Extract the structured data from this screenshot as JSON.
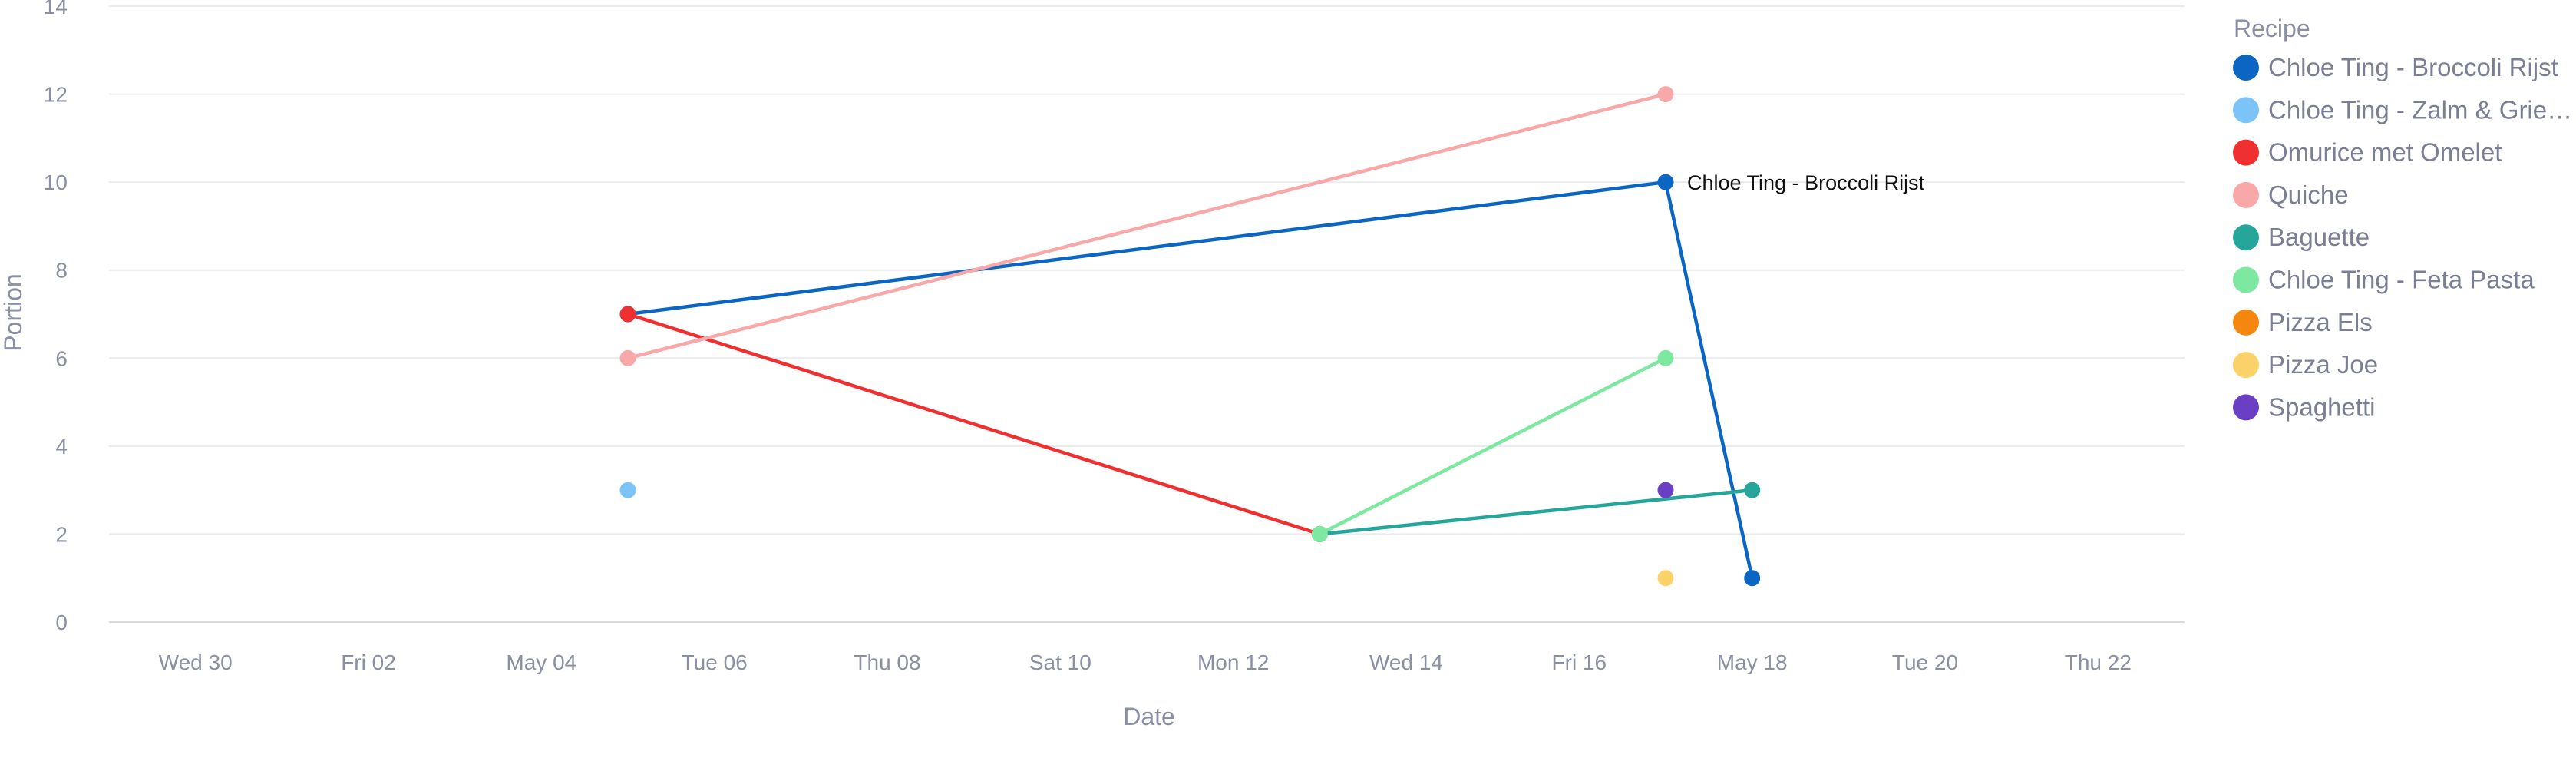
{
  "chart_data": {
    "type": "line",
    "xlabel": "Date",
    "ylabel": "Portion",
    "ylim": [
      0,
      14
    ],
    "yticks": [
      0,
      2,
      4,
      6,
      8,
      10,
      12,
      14
    ],
    "xlim": [
      "2025-04-29",
      "2025-05-23"
    ],
    "xticks": [
      {
        "date": "2025-04-30",
        "label": "Wed 30"
      },
      {
        "date": "2025-05-02",
        "label": "Fri 02"
      },
      {
        "date": "2025-05-04",
        "label": "May 04"
      },
      {
        "date": "2025-05-06",
        "label": "Tue 06"
      },
      {
        "date": "2025-05-08",
        "label": "Thu 08"
      },
      {
        "date": "2025-05-10",
        "label": "Sat 10"
      },
      {
        "date": "2025-05-12",
        "label": "Mon 12"
      },
      {
        "date": "2025-05-14",
        "label": "Wed 14"
      },
      {
        "date": "2025-05-16",
        "label": "Fri 16"
      },
      {
        "date": "2025-05-18",
        "label": "May 18"
      },
      {
        "date": "2025-05-20",
        "label": "Tue 20"
      },
      {
        "date": "2025-05-22",
        "label": "Thu 22"
      }
    ],
    "grid": true,
    "legend": {
      "title": "Recipe",
      "placement": "right"
    },
    "annotations": [
      {
        "text": "Chloe Ting - Broccoli Rijst",
        "x": "2025-05-17",
        "y": 10
      }
    ],
    "series": [
      {
        "name": "Chloe Ting - Broccoli Rijst",
        "legend_label": "Chloe Ting - Broccoli Rijst",
        "color": "#0a66c2",
        "points": [
          {
            "x": "2025-05-05",
            "y": 7
          },
          {
            "x": "2025-05-17",
            "y": 10
          },
          {
            "x": "2025-05-18",
            "y": 1
          }
        ]
      },
      {
        "name": "Chloe Ting - Zalm & Griesmeel",
        "legend_label": "Chloe Ting - Zalm & Grie…",
        "color": "#7cc4f8",
        "points": [
          {
            "x": "2025-05-05",
            "y": 3
          }
        ]
      },
      {
        "name": "Omurice met Omelet",
        "legend_label": "Omurice met Omelet",
        "color": "#f03030",
        "points": [
          {
            "x": "2025-05-05",
            "y": 7
          },
          {
            "x": "2025-05-13",
            "y": 2
          }
        ]
      },
      {
        "name": "Quiche",
        "legend_label": "Quiche",
        "color": "#f8a8a8",
        "points": [
          {
            "x": "2025-05-05",
            "y": 6
          },
          {
            "x": "2025-05-17",
            "y": 12
          }
        ]
      },
      {
        "name": "Baguette",
        "legend_label": "Baguette",
        "color": "#26a69a",
        "points": [
          {
            "x": "2025-05-13",
            "y": 2
          },
          {
            "x": "2025-05-18",
            "y": 3
          }
        ]
      },
      {
        "name": "Chloe Ting - Feta Pasta",
        "legend_label": "Chloe Ting - Feta Pasta",
        "color": "#7de8a0",
        "points": [
          {
            "x": "2025-05-13",
            "y": 2
          },
          {
            "x": "2025-05-17",
            "y": 6
          }
        ]
      },
      {
        "name": "Pizza Els",
        "legend_label": "Pizza Els",
        "color": "#f5870f",
        "points": []
      },
      {
        "name": "Pizza Joe",
        "legend_label": "Pizza Joe",
        "color": "#fbd26a",
        "points": [
          {
            "x": "2025-05-17",
            "y": 1
          }
        ]
      },
      {
        "name": "Spaghetti",
        "legend_label": "Spaghetti",
        "color": "#6b3fc4",
        "points": [
          {
            "x": "2025-05-17",
            "y": 3
          }
        ]
      }
    ]
  }
}
